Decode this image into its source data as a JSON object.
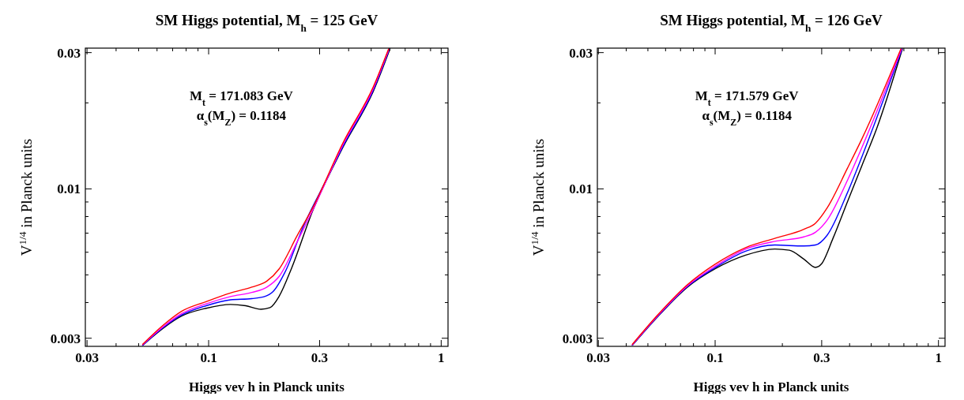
{
  "chart_data": [
    {
      "type": "line",
      "title": "SM Higgs potential, M$_{h}$ = 125 GeV",
      "xlabel": "Higgs vev h in Planck units",
      "ylabel": "V$^{1/4}$ in Planck units",
      "annotations": [
        "M$_{t}$ = 171.083 GeV",
        "α$_{s}$(M$_{Z}$) = 0.1184"
      ],
      "log": "xy",
      "grid": false,
      "marker": "none",
      "line_style": "solid",
      "xlim": [
        0.0295,
        1.07
      ],
      "ylim": [
        0.00281,
        0.0311
      ],
      "xticks": [
        0.03,
        {
          "value": 0.04,
          "label": null
        },
        {
          "value": 0.05,
          "label": null
        },
        {
          "value": 0.06,
          "label": null
        },
        {
          "value": 0.07,
          "label": null
        },
        {
          "value": 0.08,
          "label": null
        },
        {
          "value": 0.09,
          "label": null
        },
        0.1,
        {
          "value": 0.2,
          "label": null
        },
        0.3,
        {
          "value": 0.4,
          "label": null
        },
        {
          "value": 0.5,
          "label": null
        },
        {
          "value": 0.6,
          "label": null
        },
        {
          "value": 0.7,
          "label": null
        },
        {
          "value": 0.8,
          "label": null
        },
        {
          "value": 0.9,
          "label": null
        },
        1
      ],
      "yticks": [
        0.003,
        {
          "value": 0.004,
          "label": null
        },
        {
          "value": 0.005,
          "label": null
        },
        {
          "value": 0.006,
          "label": null
        },
        {
          "value": 0.007,
          "label": null
        },
        {
          "value": 0.008,
          "label": null
        },
        {
          "value": 0.009,
          "label": null
        },
        0.01,
        {
          "value": 0.02,
          "label": null
        },
        0.03
      ],
      "series": [
        {
          "color": "#000000",
          "x": [
            0.0519,
            0.064,
            0.0767,
            0.0976,
            0.1242,
            0.1443,
            0.1679,
            0.1837,
            0.2011,
            0.2268,
            0.2799,
            0.3783,
            0.511,
            0.603
          ],
          "values": [
            0.00283,
            0.00326,
            0.00359,
            0.00382,
            0.00394,
            0.0039,
            0.00379,
            0.00384,
            0.00421,
            0.00525,
            0.00836,
            0.014,
            0.022,
            0.031
          ]
        },
        {
          "color": "#0000ff",
          "x": [
            0.0519,
            0.064,
            0.0767,
            0.0976,
            0.1242,
            0.1533,
            0.1729,
            0.1893,
            0.2135,
            0.2557,
            0.3253,
            0.3783,
            0.511,
            0.6
          ],
          "values": [
            0.00283,
            0.00328,
            0.00362,
            0.0039,
            0.00409,
            0.00413,
            0.00419,
            0.00437,
            0.00513,
            0.0074,
            0.011,
            0.0141,
            0.0222,
            0.031
          ]
        },
        {
          "color": "#ff00ff",
          "x": [
            0.0519,
            0.064,
            0.0767,
            0.0976,
            0.1242,
            0.1533,
            0.1782,
            0.2011,
            0.2408,
            0.2799,
            0.3783,
            0.511,
            0.598
          ],
          "values": [
            0.00284,
            0.0033,
            0.00366,
            0.00396,
            0.0042,
            0.00434,
            0.00453,
            0.00494,
            0.00655,
            0.0084,
            0.0143,
            0.0225,
            0.031
          ]
        },
        {
          "color": "#ff0000",
          "x": [
            0.0519,
            0.064,
            0.0767,
            0.0976,
            0.1242,
            0.1533,
            0.1782,
            0.2011,
            0.2408,
            0.2799,
            0.3783,
            0.511,
            0.595
          ],
          "values": [
            0.00285,
            0.00334,
            0.00373,
            0.00403,
            0.00432,
            0.00453,
            0.00476,
            0.00525,
            0.00688,
            0.00857,
            0.0145,
            0.0228,
            0.031
          ]
        }
      ]
    },
    {
      "type": "line",
      "title": "SM Higgs potential, M$_{h}$ = 126 GeV",
      "xlabel": "Higgs vev h in Planck units",
      "ylabel": "V$^{1/4}$ in Planck units",
      "annotations": [
        "M$_{t}$ = 171.579 GeV",
        "α$_{s}$(M$_{Z}$) = 0.1184"
      ],
      "log": "xy",
      "grid": false,
      "marker": "none",
      "line_style": "solid",
      "xlim": [
        0.0297,
        1.07
      ],
      "ylim": [
        0.00281,
        0.0311
      ],
      "xticks": [
        0.03,
        {
          "value": 0.04,
          "label": null
        },
        {
          "value": 0.05,
          "label": null
        },
        {
          "value": 0.06,
          "label": null
        },
        {
          "value": 0.07,
          "label": null
        },
        {
          "value": 0.08,
          "label": null
        },
        {
          "value": 0.09,
          "label": null
        },
        0.1,
        {
          "value": 0.2,
          "label": null
        },
        0.3,
        {
          "value": 0.4,
          "label": null
        },
        {
          "value": 0.5,
          "label": null
        },
        {
          "value": 0.6,
          "label": null
        },
        {
          "value": 0.7,
          "label": null
        },
        {
          "value": 0.8,
          "label": null
        },
        {
          "value": 0.9,
          "label": null
        },
        1
      ],
      "yticks": [
        0.003,
        {
          "value": 0.004,
          "label": null
        },
        {
          "value": 0.005,
          "label": null
        },
        {
          "value": 0.006,
          "label": null
        },
        {
          "value": 0.007,
          "label": null
        },
        {
          "value": 0.008,
          "label": null
        },
        {
          "value": 0.009,
          "label": null
        },
        0.01,
        {
          "value": 0.02,
          "label": null
        },
        0.03
      ],
      "series": [
        {
          "color": "#000000",
          "x": [
            0.0425,
            0.0557,
            0.0752,
            0.1,
            0.137,
            0.185,
            0.2148,
            0.2495,
            0.2813,
            0.2987,
            0.337,
            0.391,
            0.4548,
            0.528,
            0.69
          ],
          "values": [
            0.00283,
            0.00359,
            0.00453,
            0.00525,
            0.00586,
            0.00616,
            0.0061,
            0.00568,
            0.00531,
            0.00545,
            0.00671,
            0.009,
            0.0121,
            0.0162,
            0.031
          ]
        },
        {
          "color": "#0000ff",
          "x": [
            0.0425,
            0.0557,
            0.0752,
            0.1,
            0.137,
            0.185,
            0.2495,
            0.2813,
            0.3172,
            0.391,
            0.4548,
            0.688
          ],
          "values": [
            0.00283,
            0.0036,
            0.00456,
            0.0053,
            0.00605,
            0.00636,
            0.00631,
            0.00636,
            0.00688,
            0.00969,
            0.013,
            0.031
          ]
        },
        {
          "color": "#ff00ff",
          "x": [
            0.0425,
            0.0557,
            0.0752,
            0.1,
            0.137,
            0.185,
            0.2495,
            0.2813,
            0.3172,
            0.391,
            0.4548,
            0.685
          ],
          "values": [
            0.00284,
            0.00362,
            0.00458,
            0.00536,
            0.00616,
            0.00655,
            0.00679,
            0.00705,
            0.00777,
            0.0107,
            0.014,
            0.031
          ]
        },
        {
          "color": "#ff0000",
          "x": [
            0.0425,
            0.0557,
            0.0752,
            0.1,
            0.137,
            0.185,
            0.2495,
            0.2813,
            0.3172,
            0.391,
            0.4548,
            0.68
          ],
          "values": [
            0.00285,
            0.00364,
            0.00462,
            0.00545,
            0.00623,
            0.00671,
            0.00722,
            0.00758,
            0.00857,
            0.0118,
            0.015,
            0.031
          ]
        }
      ]
    }
  ]
}
